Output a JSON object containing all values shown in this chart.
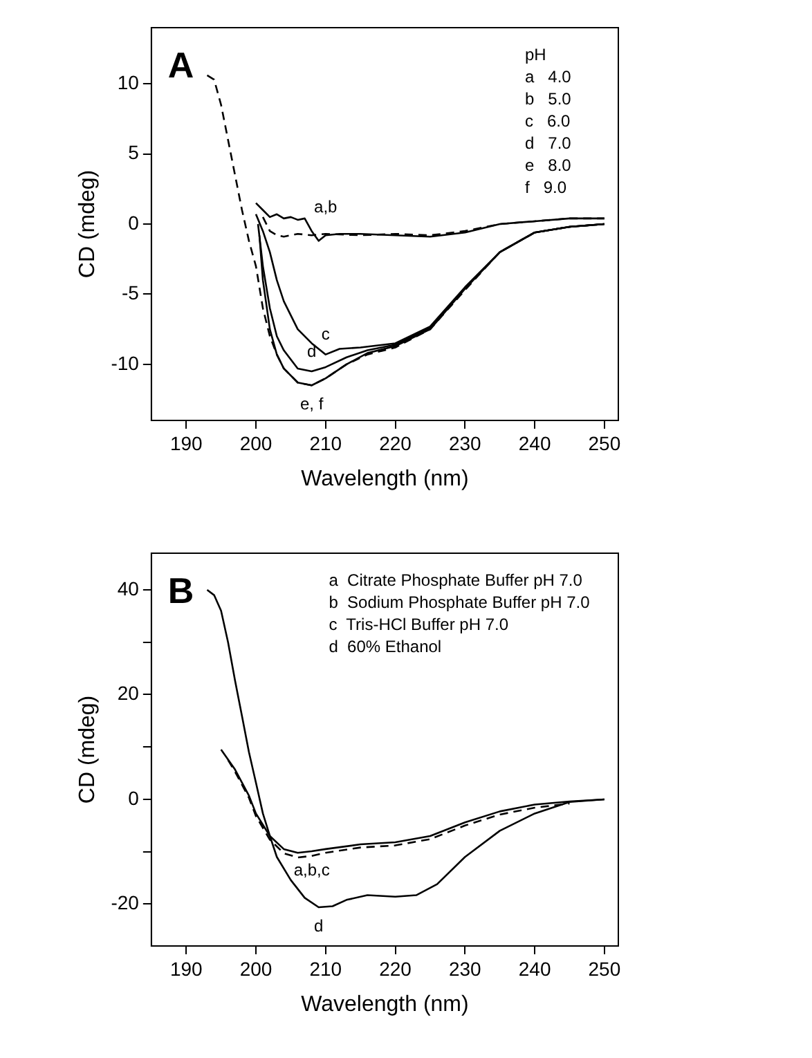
{
  "chart_data": [
    {
      "type": "line",
      "title": "A",
      "xlabel": "Wavelength (nm)",
      "ylabel": "CD (mdeg)",
      "xlim": [
        185,
        252
      ],
      "ylim": [
        -14,
        14
      ],
      "xticks": [
        190,
        200,
        210,
        220,
        230,
        240,
        250
      ],
      "yticks": [
        -10,
        -5,
        0,
        5,
        10
      ],
      "grid": false,
      "legend": false,
      "marker": "none",
      "annotations": [
        "pH",
        "a   4.0",
        "b   5.0",
        "c   6.0",
        "d   7.0",
        "e   8.0",
        "f   9.0",
        {
          "text": "a,b",
          "x": 210,
          "y": -0.8
        },
        {
          "text": "c",
          "x": 210,
          "y": -9.3
        },
        {
          "text": "d",
          "x": 208,
          "y": -10.5
        },
        {
          "text": "e, f",
          "x": 208,
          "y": -11.5
        }
      ],
      "series": [
        {
          "color": "#000000",
          "line_style": "solid",
          "x": [
            200,
            201,
            202,
            203,
            204,
            205,
            206,
            207,
            208,
            209,
            210,
            212,
            215,
            220,
            225,
            230,
            235,
            240,
            245,
            250
          ],
          "values": [
            1.5,
            1.0,
            0.5,
            0.7,
            0.4,
            0.5,
            0.3,
            0.4,
            -0.5,
            -1.2,
            -0.8,
            -0.7,
            -0.7,
            -0.8,
            -0.9,
            -0.6,
            0,
            0.2,
            0.4,
            0.4
          ]
        },
        {
          "color": "#000000",
          "line_style": "dashed",
          "x": [
            201,
            202,
            203,
            204,
            206,
            208,
            210,
            215,
            220,
            225,
            230,
            235,
            240,
            245,
            250
          ],
          "values": [
            0.5,
            -0.5,
            -0.8,
            -0.9,
            -0.7,
            -0.8,
            -0.7,
            -0.8,
            -0.7,
            -0.8,
            -0.5,
            0,
            0.2,
            0.4,
            0.4
          ]
        },
        {
          "color": "#000000",
          "line_style": "solid",
          "x": [
            200,
            201,
            202,
            203,
            204,
            206,
            208,
            210,
            212,
            215,
            220,
            225,
            230,
            235,
            240,
            245,
            250
          ],
          "values": [
            0.7,
            -0.5,
            -2,
            -4,
            -5.5,
            -7.5,
            -8.5,
            -9.3,
            -8.9,
            -8.8,
            -8.5,
            -7.3,
            -4.5,
            -2,
            -0.6,
            -0.2,
            0
          ]
        },
        {
          "color": "#000000",
          "line_style": "solid",
          "x": [
            200.3,
            201,
            202,
            203,
            204,
            206,
            208,
            210,
            213,
            216,
            220,
            225,
            230,
            235,
            240,
            245,
            250
          ],
          "values": [
            0,
            -3,
            -6,
            -8,
            -9,
            -10.3,
            -10.5,
            -10.2,
            -9.5,
            -9,
            -8.6,
            -7.4,
            -4.6,
            -2,
            -0.6,
            -0.2,
            0
          ]
        },
        {
          "color": "#000000",
          "line_style": "solid",
          "x": [
            200.5,
            201,
            202,
            203,
            204,
            206,
            208,
            210,
            213,
            216,
            220,
            225,
            230,
            235,
            240,
            245,
            250
          ],
          "values": [
            -0.8,
            -4,
            -7.5,
            -9.3,
            -10.3,
            -11.3,
            -11.5,
            -11,
            -10,
            -9.2,
            -8.7,
            -7.5,
            -4.6,
            -2,
            -0.6,
            -0.2,
            0
          ]
        },
        {
          "color": "#000000",
          "line_style": "dashed",
          "x": [
            193,
            194,
            195,
            196,
            197,
            198,
            199,
            200,
            201,
            202,
            203,
            204,
            206,
            208,
            210,
            213,
            216,
            220,
            225,
            230,
            235,
            240,
            245,
            250
          ],
          "values": [
            10.6,
            10.3,
            8.5,
            6,
            3.5,
            1,
            -1.2,
            -3,
            -6,
            -8,
            -9.3,
            -10.3,
            -11.3,
            -11.5,
            -11,
            -10,
            -9.3,
            -8.8,
            -7.5,
            -4.7,
            -2,
            -0.6,
            -0.2,
            0
          ]
        }
      ]
    },
    {
      "type": "line",
      "title": "B",
      "xlabel": "Wavelength (nm)",
      "ylabel": "CD (mdeg)",
      "xlim": [
        185,
        252
      ],
      "ylim": [
        -28,
        47
      ],
      "xticks": [
        190,
        200,
        210,
        220,
        230,
        240,
        250
      ],
      "yticks": [
        -20,
        {
          "value": -10,
          "label": null
        },
        0,
        {
          "value": 10,
          "label": null
        },
        20,
        {
          "value": 30,
          "label": null
        },
        40
      ],
      "grid": false,
      "legend": false,
      "marker": "none",
      "annotations": [
        "a  Citrate Phosphate Buffer pH 7.0",
        "b  Sodium Phosphate Buffer pH 7.0",
        "c  Tris-HCl Buffer pH 7.0",
        "d  60% Ethanol",
        {
          "text": "a,b,c",
          "x": 208,
          "y": -9.9
        },
        {
          "text": "d",
          "x": 209,
          "y": -20.6
        }
      ],
      "series": [
        {
          "color": "#000000",
          "line_style": "solid",
          "x": [
            195,
            197,
            199,
            200,
            202,
            204,
            206,
            208,
            210,
            215,
            220,
            225,
            230,
            235,
            240,
            245,
            250
          ],
          "values": [
            9.5,
            5.7,
            0.7,
            -2.7,
            -7,
            -9.5,
            -10.2,
            -9.9,
            -9.5,
            -8.6,
            -8.2,
            -7,
            -4.4,
            -2.3,
            -1,
            -0.4,
            0
          ]
        },
        {
          "color": "#000000",
          "line_style": "dashed",
          "x": [
            196,
            197,
            199,
            200,
            202,
            204,
            206,
            208,
            210,
            215,
            220,
            225,
            230,
            235,
            240,
            245
          ],
          "values": [
            7.5,
            5.3,
            0.3,
            -3.2,
            -7.7,
            -10.3,
            -11.1,
            -10.8,
            -10.2,
            -9.2,
            -8.8,
            -7.6,
            -5,
            -2.9,
            -1.6,
            -0.8
          ]
        },
        {
          "color": "#000000",
          "line_style": "solid",
          "x": [
            193,
            194,
            195,
            196,
            197,
            198,
            199,
            200,
            201,
            202,
            203,
            205,
            207,
            209,
            211,
            213,
            216,
            220,
            223,
            226,
            230,
            235,
            240,
            245,
            250
          ],
          "values": [
            40,
            39,
            36,
            30,
            22.7,
            15.9,
            9,
            3.2,
            -2.7,
            -7,
            -11,
            -15.4,
            -18.8,
            -20.6,
            -20.4,
            -19.2,
            -18.3,
            -18.6,
            -18.3,
            -16.2,
            -11,
            -6,
            -2.7,
            -0.5,
            0
          ]
        }
      ]
    }
  ]
}
